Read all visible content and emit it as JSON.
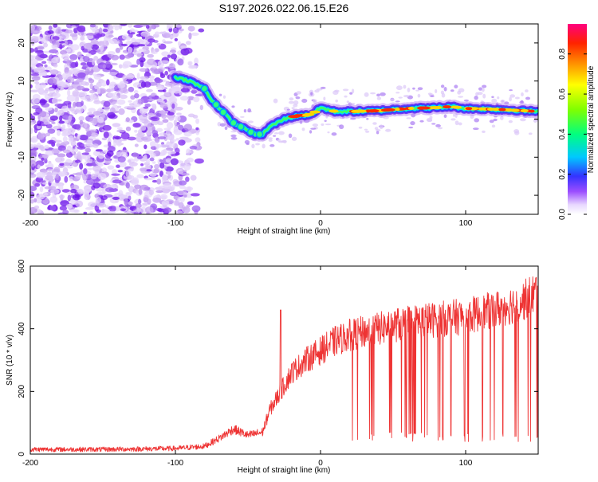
{
  "title": "S197.2026.022.06.15.E26",
  "colors": {
    "snr_line": "#ee3333",
    "axis": "#000000",
    "ridge_low": "#3333ff",
    "ridge_mid": "#00e0ff",
    "ridge_high": "#ff2200",
    "noise": "#8a2be2"
  },
  "chart_data": [
    {
      "type": "heatmap",
      "name": "spectrogram",
      "xlabel": "Height of straight line (km)",
      "ylabel": "Frequency (Hz)",
      "xlim": [
        -200,
        150
      ],
      "ylim": [
        -25,
        25
      ],
      "xticks": [
        -200,
        -100,
        0,
        100
      ],
      "xtick_labels": [
        "-200",
        "-100",
        "0",
        "100"
      ],
      "yticks": [
        -20,
        -10,
        0,
        10,
        20
      ],
      "ytick_labels": [
        "-20",
        "-10",
        "0",
        "10",
        "20"
      ],
      "noise_region_x": [
        -200,
        -78
      ],
      "ridge": {
        "x": [
          -100,
          -90,
          -80,
          -75,
          -70,
          -65,
          -60,
          -55,
          -50,
          -45,
          -40,
          -35,
          -30,
          -25,
          -20,
          -15,
          -10,
          -5,
          0,
          10,
          20,
          40,
          60,
          80,
          90,
          100,
          120,
          150
        ],
        "y": [
          11,
          10,
          8,
          5,
          3,
          1,
          -1,
          -2,
          -3,
          -4,
          -4,
          -2,
          -1,
          0,
          0.5,
          1,
          1,
          1.5,
          3,
          2,
          2,
          2.2,
          2.8,
          3,
          3.3,
          2.8,
          2.6,
          2
        ]
      },
      "colorbar": {
        "label": "Normalized spectral amplitude",
        "ticks": [
          0.0,
          0.2,
          0.4,
          0.6,
          0.8
        ],
        "tick_labels": [
          "0.0",
          "0.2",
          "0.4",
          "0.6",
          "0.8"
        ],
        "range": [
          0,
          0.95
        ]
      }
    },
    {
      "type": "line",
      "name": "snr",
      "xlabel": "Height of straight line (km)",
      "ylabel": "SNR (10 * v/v)",
      "xlim": [
        -200,
        150
      ],
      "ylim": [
        0,
        600
      ],
      "xticks": [
        -200,
        -100,
        0,
        100
      ],
      "xtick_labels": [
        "-200",
        "-100",
        "0",
        "100"
      ],
      "yticks": [
        0,
        200,
        400,
        600
      ],
      "ytick_labels": [
        "0",
        "200",
        "400",
        "600"
      ],
      "series": [
        {
          "name": "SNR",
          "x": [
            -200,
            -150,
            -100,
            -80,
            -70,
            -60,
            -50,
            -40,
            -35,
            -30,
            -20,
            -10,
            0,
            10,
            20,
            30,
            40,
            60,
            80,
            100,
            120,
            140,
            150
          ],
          "values": [
            15,
            15,
            18,
            25,
            50,
            80,
            60,
            70,
            140,
            180,
            260,
            300,
            330,
            360,
            380,
            390,
            400,
            420,
            430,
            440,
            460,
            490,
            520
          ],
          "spike": {
            "x": -27.5,
            "value": 460
          },
          "dropout_floor": 40,
          "dropout_start": 20
        }
      ]
    }
  ]
}
